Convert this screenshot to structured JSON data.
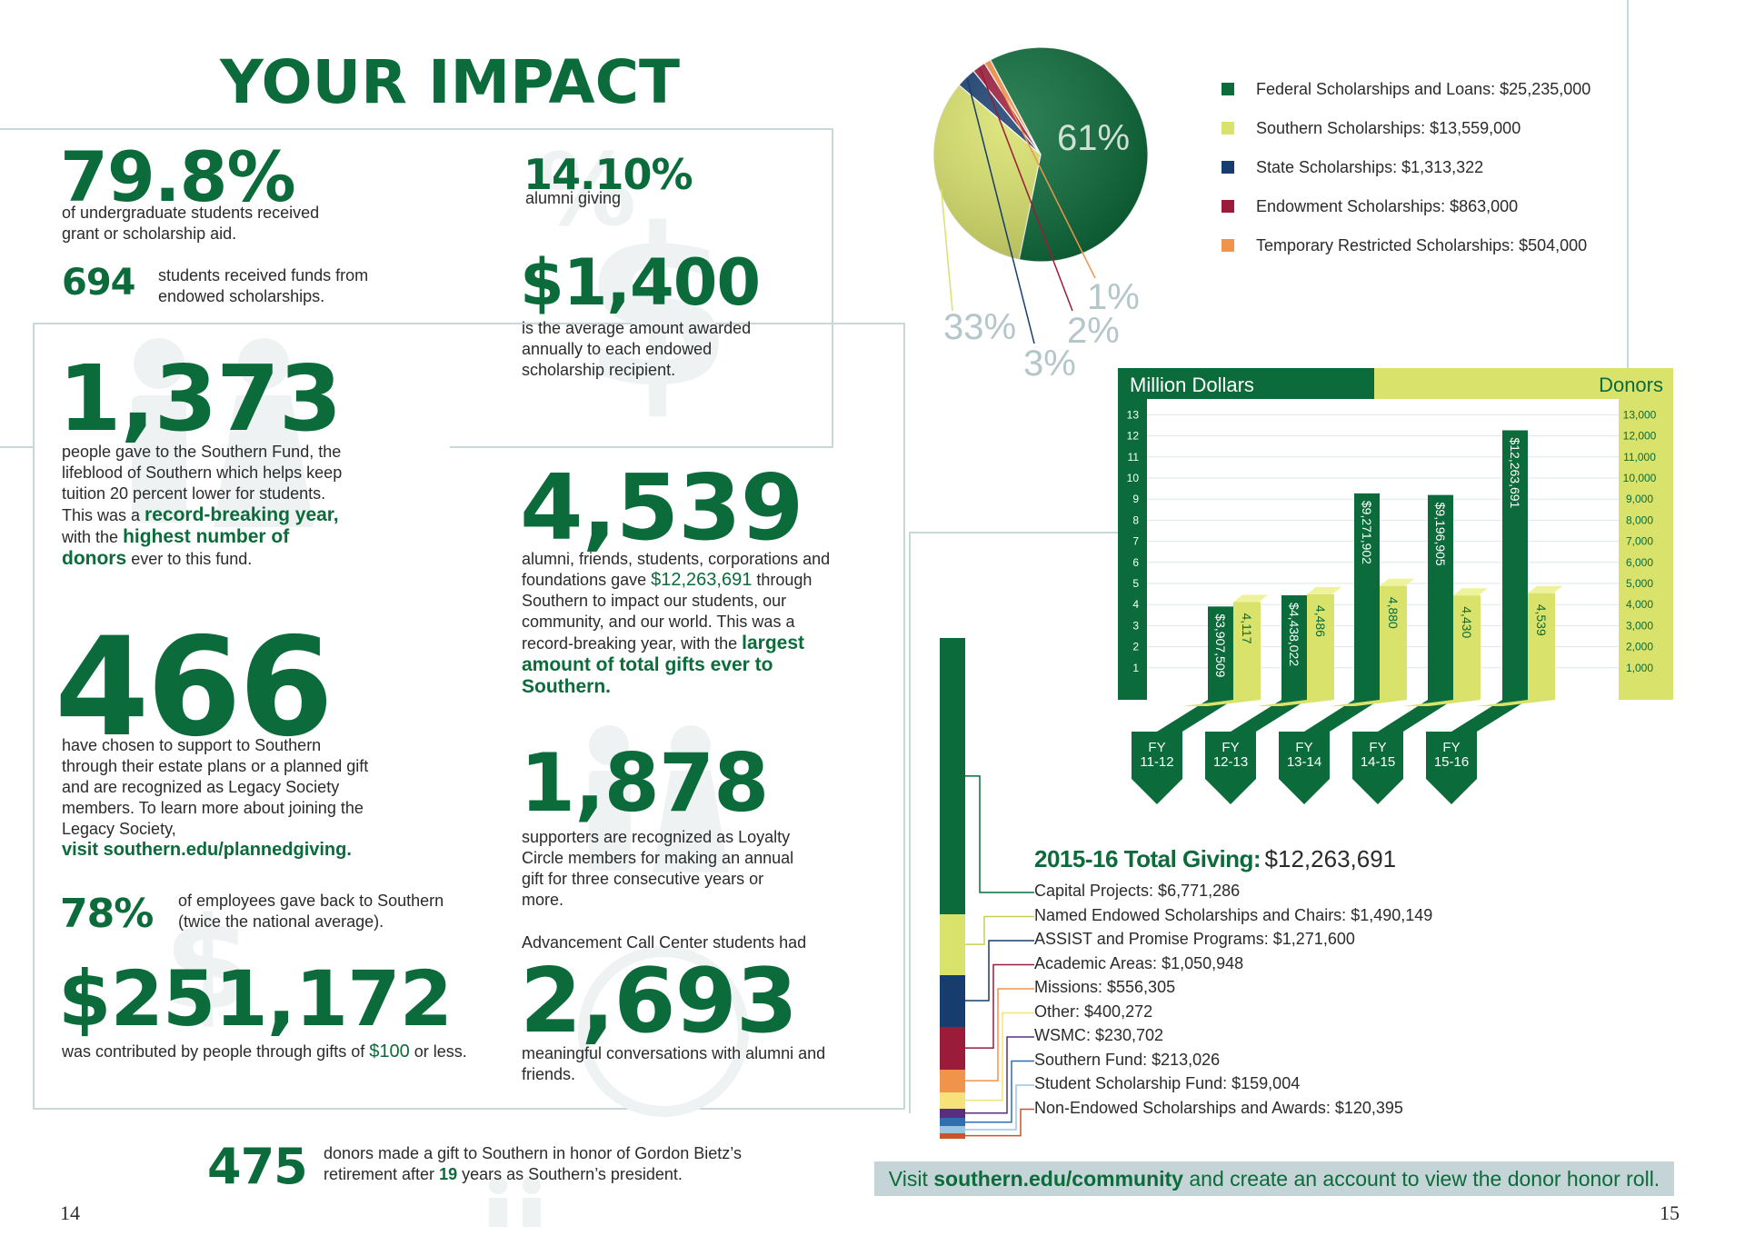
{
  "left": {
    "title": "YOUR IMPACT",
    "page_number": "14",
    "stat_undergrad": {
      "value": "79.8%",
      "text": "of undergraduate students received grant or scholarship aid."
    },
    "stat_alumni_giving": {
      "value": "14.10%",
      "text": "alumni giving"
    },
    "stat_endowed_students": {
      "value": "694",
      "text": "students received funds from endowed scholarships."
    },
    "stat_avg_award": {
      "value": "$1,400",
      "text": "is the average amount awarded annually to each endowed scholarship recipient."
    },
    "stat_southern_fund": {
      "value": "1,373",
      "text": "people gave to the Southern Fund, the lifeblood of Southern which helps keep tuition 20 percent lower for students. This was a",
      "highlight1": "record-breaking year,",
      "text2": "with the",
      "highlight2": "highest number of donors",
      "text3": "ever to this fund."
    },
    "stat_total_donors": {
      "value": "4,539",
      "text": "alumni, friends, students, corporations and foundations gave",
      "amount": "$12,263,691",
      "text2": "through Southern to impact our students, our community, and our world. This was a record-breaking year, with the",
      "highlight": "largest amount of total gifts ever to Southern."
    },
    "stat_legacy": {
      "value": "466",
      "text": "have chosen to support to Southern through their estate plans or a planned gift and are recognized as Legacy Society members. To learn more about joining the Legacy Society,",
      "link": "visit southern.edu/plannedgiving."
    },
    "stat_loyalty": {
      "value": "1,878",
      "text": "supporters are recognized as Loyalty Circle members for making an annual gift for three consecutive years or more."
    },
    "stat_employees": {
      "value": "78%",
      "text": "of employees gave back to Southern (twice the national average)."
    },
    "stat_call_center": {
      "intro": "Advancement Call Center students had",
      "value": "2,693",
      "text": "meaningful conversations with alumni and friends."
    },
    "stat_small_gifts": {
      "value": "$251,172",
      "text": "was contributed by people through gifts of",
      "amount": "$100",
      "text2": "or less."
    },
    "stat_bietz": {
      "value": "475",
      "text": "donors made a gift to Southern in honor of Gordon Bietz’s retirement after",
      "years": "19",
      "text2": "years as Southern’s president."
    }
  },
  "right": {
    "page_number": "15",
    "footer_banner": {
      "prefix": "Visit",
      "link": "southern.edu/community",
      "suffix": "and create an account to view the donor honor roll."
    },
    "allocation": {
      "title": "2015-16 Total Giving:",
      "total": "$12,263,691",
      "items": [
        {
          "label": "Capital Projects: $6,771,286",
          "value": 6771286,
          "color": "#0b6b3a"
        },
        {
          "label": "Named Endowed Scholarships and Chairs: $1,490,149",
          "value": 1490149,
          "color": "#d9e26a"
        },
        {
          "label": "ASSIST and Promise Programs: $1,271,600",
          "value": 1271600,
          "color": "#163d6e"
        },
        {
          "label": "Academic Areas: $1,050,948",
          "value": 1050948,
          "color": "#9b1b3a"
        },
        {
          "label": "Missions: $556,305",
          "value": 556305,
          "color": "#f0944c"
        },
        {
          "label": "Other: $400,272",
          "value": 400272,
          "color": "#f6e27a"
        },
        {
          "label": "WSMC: $230,702",
          "value": 230702,
          "color": "#5b2d82"
        },
        {
          "label": "Southern Fund: $213,026",
          "value": 213026,
          "color": "#2f6fb0"
        },
        {
          "label": "Student Scholarship Fund: $159,004",
          "value": 159004,
          "color": "#9bc6e0"
        },
        {
          "label": "Non-Endowed Scholarships and Awards: $120,395",
          "value": 120395,
          "color": "#c8562a"
        }
      ]
    }
  },
  "chart_data": [
    {
      "type": "pie",
      "categories": [
        "Federal Scholarships and Loans: $25,235,000",
        "Southern Scholarships: $13,559,000",
        "State Scholarships: $1,313,322",
        "Endowment Scholarships: $863,000",
        "Temporary Restricted Scholarships: $504,000"
      ],
      "values": [
        61,
        33,
        3,
        2,
        1
      ],
      "value_labels": [
        "61%",
        "33%",
        "3%",
        "2%",
        "1%"
      ],
      "colors": [
        "#0b6b3a",
        "#d9e26a",
        "#163d6e",
        "#9b1b3a",
        "#f0944c"
      ],
      "legend": "right"
    },
    {
      "type": "bar",
      "categories": [
        "FY 11-12",
        "FY 12-13",
        "FY 13-14",
        "FY 14-15",
        "FY 15-16"
      ],
      "category_lines": [
        [
          "FY",
          "11-12"
        ],
        [
          "FY",
          "12-13"
        ],
        [
          "FY",
          "13-14"
        ],
        [
          "FY",
          "14-15"
        ],
        [
          "FY",
          "15-16"
        ]
      ],
      "series": [
        {
          "name": "Million Dollars",
          "values": [
            3907509,
            4438022,
            9271902,
            9196905,
            12263691
          ],
          "labels": [
            "$3,907,509",
            "$4,438,022",
            "$9,271,902",
            "$9,196,905",
            "$12,263,691"
          ],
          "color": "#0b6b3a"
        },
        {
          "name": "Donors",
          "values": [
            4117,
            4486,
            4880,
            4430,
            4539
          ],
          "labels": [
            "4,117",
            "4,486",
            "4,880",
            "4,430",
            "4,539"
          ],
          "color": "#d9e26a"
        }
      ],
      "y_left": {
        "label": "Million Dollars",
        "ticks": [
          "1",
          "2",
          "3",
          "4",
          "5",
          "6",
          "7",
          "8",
          "9",
          "10",
          "11",
          "12",
          "13"
        ],
        "ylim": [
          0,
          13
        ]
      },
      "y_right": {
        "label": "Donors",
        "ticks": [
          "1,000",
          "2,000",
          "3,000",
          "4,000",
          "5,000",
          "6,000",
          "7,000",
          "8,000",
          "9,000",
          "10,000",
          "11,000",
          "12,000",
          "13,000"
        ],
        "ylim": [
          0,
          13000
        ]
      },
      "grid": true
    }
  ]
}
